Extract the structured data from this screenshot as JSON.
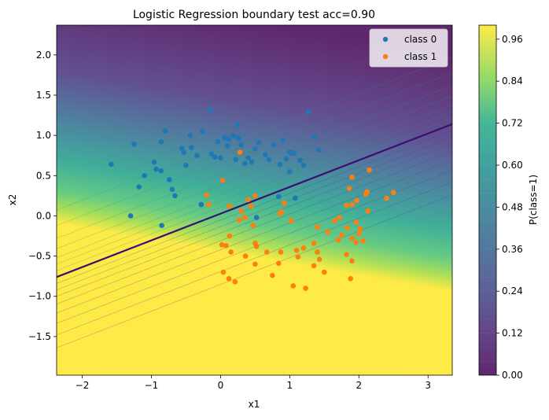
{
  "chart_data": {
    "type": "scatter",
    "title": "Logistic Regression boundary  test acc=0.90",
    "xlabel": "x1",
    "ylabel": "x2",
    "xlim": [
      -2.37,
      3.35
    ],
    "ylim": [
      -1.98,
      2.37
    ],
    "x_ticks": [
      -2,
      -1,
      0,
      1,
      2,
      3
    ],
    "y_ticks": [
      -1.5,
      -1.0,
      -0.5,
      0.0,
      0.5,
      1.0,
      1.5,
      2.0
    ],
    "x_tick_labels": [
      "−2",
      "−1",
      "0",
      "1",
      "2",
      "3"
    ],
    "y_tick_labels": [
      "−1.5",
      "−1.0",
      "−0.5",
      "0.0",
      "0.5",
      "1.0",
      "1.5",
      "2.0"
    ],
    "decision_boundary": {
      "points": [
        [
          -2.37,
          -0.76
        ],
        [
          3.35,
          1.14
        ]
      ],
      "color": "#3b0f70"
    },
    "probability_field": {
      "colormap": "viridis",
      "axis_of_increase_direction": [
        0.313,
        -0.95
      ],
      "comment_free": true
    },
    "colorbar": {
      "label": "P(class=1)",
      "range": [
        0.0,
        1.0
      ],
      "ticks": [
        0.0,
        0.12,
        0.24,
        0.36,
        0.48,
        0.6,
        0.72,
        0.84,
        0.96
      ],
      "tick_labels": [
        "0.00",
        "0.12",
        "0.24",
        "0.36",
        "0.48",
        "0.60",
        "0.72",
        "0.84",
        "0.96"
      ]
    },
    "legend": {
      "position": "top-right",
      "entries": [
        {
          "label": "class 0",
          "color": "#1f77b4"
        },
        {
          "label": "class 1",
          "color": "#ff7f0e"
        }
      ]
    },
    "series": [
      {
        "name": "class 0",
        "color": "#1f77b4",
        "points": [
          [
            -1.58,
            0.64
          ],
          [
            -1.25,
            0.89
          ],
          [
            -1.18,
            0.36
          ],
          [
            -1.1,
            0.5
          ],
          [
            -0.96,
            0.67
          ],
          [
            -0.93,
            0.58
          ],
          [
            -0.86,
            0.92
          ],
          [
            -0.8,
            1.06
          ],
          [
            -0.86,
            0.56
          ],
          [
            -0.74,
            0.45
          ],
          [
            -0.7,
            0.33
          ],
          [
            -0.66,
            0.25
          ],
          [
            -0.56,
            0.84
          ],
          [
            -0.53,
            0.79
          ],
          [
            -0.5,
            0.63
          ],
          [
            -0.44,
            1.0
          ],
          [
            -0.42,
            0.85
          ],
          [
            -0.34,
            0.75
          ],
          [
            -0.26,
            1.05
          ],
          [
            -0.15,
            1.32
          ],
          [
            -0.13,
            0.77
          ],
          [
            -0.08,
            0.73
          ],
          [
            -0.04,
            0.92
          ],
          [
            0.0,
            0.72
          ],
          [
            0.06,
            0.97
          ],
          [
            0.1,
            0.87
          ],
          [
            0.12,
            0.95
          ],
          [
            0.18,
            1.0
          ],
          [
            0.22,
            0.7
          ],
          [
            0.25,
            0.97
          ],
          [
            0.27,
            0.96
          ],
          [
            0.24,
            1.13
          ],
          [
            0.3,
            0.88
          ],
          [
            0.35,
            0.65
          ],
          [
            0.4,
            0.72
          ],
          [
            0.45,
            0.67
          ],
          [
            0.5,
            0.83
          ],
          [
            0.55,
            0.91
          ],
          [
            0.65,
            0.76
          ],
          [
            0.7,
            0.7
          ],
          [
            0.77,
            0.88
          ],
          [
            0.84,
            0.24
          ],
          [
            0.86,
            0.64
          ],
          [
            0.9,
            0.94
          ],
          [
            0.95,
            0.71
          ],
          [
            1.0,
            0.79
          ],
          [
            1.02,
            0.78
          ],
          [
            1.06,
            0.78
          ],
          [
            1.08,
            0.22
          ],
          [
            1.15,
            0.69
          ],
          [
            1.27,
            1.29
          ],
          [
            1.35,
            0.98
          ],
          [
            1.42,
            0.82
          ],
          [
            1.2,
            0.63
          ],
          [
            1.0,
            0.55
          ],
          [
            0.52,
            -0.02
          ],
          [
            -0.28,
            0.14
          ],
          [
            -1.3,
            0.0
          ],
          [
            -0.85,
            -0.12
          ]
        ]
      },
      {
        "name": "class 1",
        "color": "#ff7f0e",
        "points": [
          [
            -0.2,
            0.26
          ],
          [
            -0.17,
            0.14
          ],
          [
            0.03,
            0.44
          ],
          [
            0.13,
            0.12
          ],
          [
            0.28,
            0.79
          ],
          [
            0.3,
            0.06
          ],
          [
            0.27,
            -0.05
          ],
          [
            0.35,
            -0.02
          ],
          [
            0.4,
            0.2
          ],
          [
            0.44,
            0.12
          ],
          [
            0.47,
            -0.12
          ],
          [
            0.5,
            0.25
          ],
          [
            0.13,
            -0.25
          ],
          [
            0.08,
            -0.37
          ],
          [
            0.15,
            -0.45
          ],
          [
            0.02,
            -0.36
          ],
          [
            0.12,
            -0.78
          ],
          [
            0.04,
            -0.7
          ],
          [
            0.21,
            -0.82
          ],
          [
            0.36,
            -0.5
          ],
          [
            0.5,
            -0.34
          ],
          [
            0.52,
            -0.38
          ],
          [
            0.5,
            -0.6
          ],
          [
            0.75,
            -0.74
          ],
          [
            0.86,
            0.03
          ],
          [
            0.88,
            0.05
          ],
          [
            0.92,
            0.16
          ],
          [
            1.02,
            -0.06
          ],
          [
            1.1,
            -0.43
          ],
          [
            0.87,
            -0.45
          ],
          [
            0.84,
            -0.59
          ],
          [
            1.05,
            -0.87
          ],
          [
            1.12,
            -0.51
          ],
          [
            1.2,
            -0.4
          ],
          [
            1.23,
            -0.9
          ],
          [
            1.35,
            -0.34
          ],
          [
            1.4,
            -0.45
          ],
          [
            1.43,
            -0.54
          ],
          [
            1.35,
            -0.62
          ],
          [
            1.4,
            -0.14
          ],
          [
            1.55,
            -0.2
          ],
          [
            1.65,
            -0.06
          ],
          [
            1.72,
            -0.02
          ],
          [
            1.75,
            -0.24
          ],
          [
            1.82,
            -0.48
          ],
          [
            1.9,
            -0.28
          ],
          [
            1.96,
            -0.33
          ],
          [
            1.9,
            -0.56
          ],
          [
            1.88,
            -0.78
          ],
          [
            1.96,
            -0.08
          ],
          [
            2.02,
            -0.16
          ],
          [
            2.06,
            -0.31
          ],
          [
            2.0,
            -0.22
          ],
          [
            2.1,
            0.27
          ],
          [
            2.12,
            0.3
          ],
          [
            2.13,
            0.06
          ],
          [
            2.15,
            0.57
          ],
          [
            1.9,
            0.48
          ],
          [
            1.86,
            0.34
          ],
          [
            1.82,
            0.13
          ],
          [
            1.9,
            0.14
          ],
          [
            1.97,
            0.19
          ],
          [
            2.4,
            0.22
          ],
          [
            2.5,
            0.29
          ],
          [
            1.83,
            -0.15
          ],
          [
            1.7,
            -0.3
          ],
          [
            1.5,
            -0.7
          ],
          [
            0.67,
            -0.45
          ]
        ]
      }
    ]
  }
}
